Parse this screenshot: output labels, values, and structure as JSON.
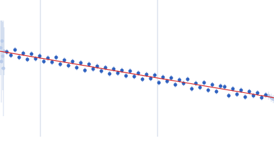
{
  "chart_data": {
    "type": "scatter",
    "xlim": [
      0,
      400
    ],
    "ylim": [
      0,
      200
    ],
    "xticks": [
      59,
      230
    ],
    "grid": true,
    "grid_color": "#c8d3e6",
    "series": [
      {
        "color": "#2f62c0",
        "error_color": "#9db4e0",
        "x": [
          10,
          16,
          22,
          28,
          34,
          40,
          46,
          52,
          58,
          64,
          70,
          76,
          82,
          88,
          94,
          100,
          106,
          112,
          118,
          124,
          130,
          136,
          142,
          148,
          154,
          160,
          166,
          172,
          178,
          184,
          190,
          196,
          202,
          208,
          214,
          220,
          226,
          232,
          238,
          244,
          250,
          256,
          262,
          268,
          274,
          280,
          286,
          292,
          298,
          304,
          310,
          316,
          322,
          328,
          334,
          340,
          346,
          352,
          358,
          364,
          370,
          376,
          382,
          388
        ],
        "values": [
          124,
          119,
          127,
          116,
          122,
          113,
          121,
          114,
          118,
          110,
          115,
          109,
          116,
          106,
          112,
          104,
          110,
          101,
          108,
          97,
          106,
          99,
          103,
          96,
          101,
          92,
          99,
          93,
          97,
          89,
          96,
          88,
          93,
          84,
          91,
          85,
          90,
          79,
          87,
          81,
          86,
          76,
          83,
          78,
          84,
          70,
          78,
          72,
          79,
          68,
          76,
          66,
          74,
          73,
          60,
          70,
          62,
          68,
          58,
          66,
          60,
          64,
          57,
          61
        ],
        "errors": [
          4,
          4,
          4,
          4,
          4,
          4,
          4,
          4,
          4,
          4,
          4,
          4,
          4,
          4,
          4,
          4,
          4,
          4,
          4,
          4,
          4,
          4,
          4,
          4,
          4,
          4,
          4,
          4,
          4,
          4,
          4,
          4,
          4,
          4,
          4,
          4,
          4,
          4,
          4,
          4,
          4,
          4,
          4,
          4,
          4,
          4,
          4,
          4,
          4,
          4,
          4,
          4,
          4,
          4,
          4,
          4,
          4,
          4,
          4,
          4,
          4,
          4,
          4,
          4
        ]
      },
      {
        "color": "#b9cbea",
        "error_color": "#d3deef",
        "x": [
          1,
          2,
          3,
          4,
          5,
          6,
          392,
          396,
          399
        ],
        "values": [
          130,
          110,
          140,
          118,
          100,
          125,
          60,
          57,
          55
        ],
        "errors": [
          40,
          60,
          30,
          50,
          70,
          35,
          6,
          6,
          6
        ]
      }
    ],
    "fit": {
      "color": "#d62728",
      "x": [
        0,
        400
      ],
      "y": [
        125,
        57
      ]
    }
  }
}
